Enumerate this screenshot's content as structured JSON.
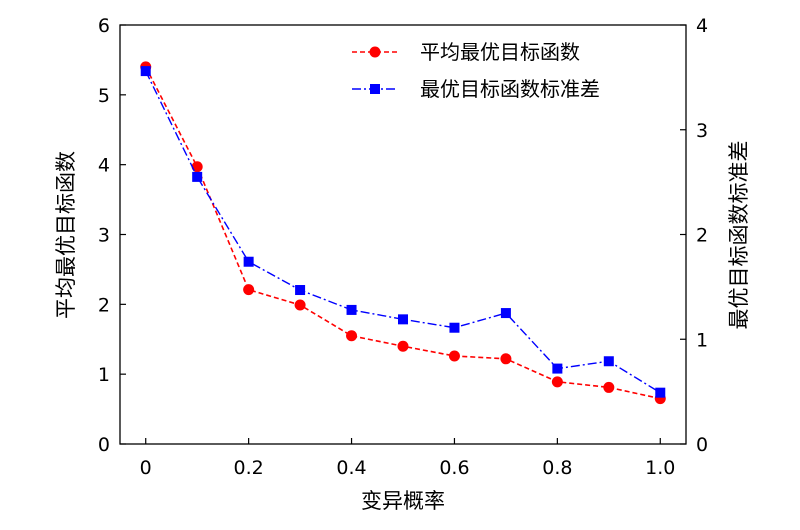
{
  "chart_data": {
    "type": "line",
    "xlabel": "变异概率",
    "ylabel_left": "平均最优目标函数",
    "ylabel_right": "最优目标函数标准差",
    "xlim": [
      -0.05,
      1.05
    ],
    "ylim_left": [
      0,
      6
    ],
    "ylim_right": [
      0,
      4
    ],
    "x_ticks": [
      0,
      0.2,
      0.4,
      0.6,
      0.8,
      1.0
    ],
    "x_tick_labels": [
      "0",
      "0.2",
      "0.4",
      "0.6",
      "0.8",
      "1.0"
    ],
    "y_left_ticks": [
      0,
      1,
      2,
      3,
      4,
      5,
      6
    ],
    "y_right_ticks": [
      0,
      1,
      2,
      3,
      4
    ],
    "x": [
      0,
      0.1,
      0.2,
      0.3,
      0.4,
      0.5,
      0.6,
      0.7,
      0.8,
      0.9,
      1.0
    ],
    "series": [
      {
        "name": "平均最优目标函数",
        "axis": "left",
        "color": "#ff0000",
        "marker": "circle",
        "line_style": "dashed",
        "values": [
          5.4,
          3.97,
          2.21,
          1.99,
          1.55,
          1.4,
          1.26,
          1.22,
          0.89,
          0.81,
          0.65
        ]
      },
      {
        "name": "最优目标函数标准差",
        "axis": "right",
        "color": "#0000ff",
        "marker": "square",
        "line_style": "dashdot",
        "values": [
          3.56,
          2.55,
          1.74,
          1.47,
          1.28,
          1.19,
          1.11,
          1.25,
          0.72,
          0.79,
          0.49
        ]
      }
    ],
    "legend_position": "top-right",
    "grid": false
  }
}
